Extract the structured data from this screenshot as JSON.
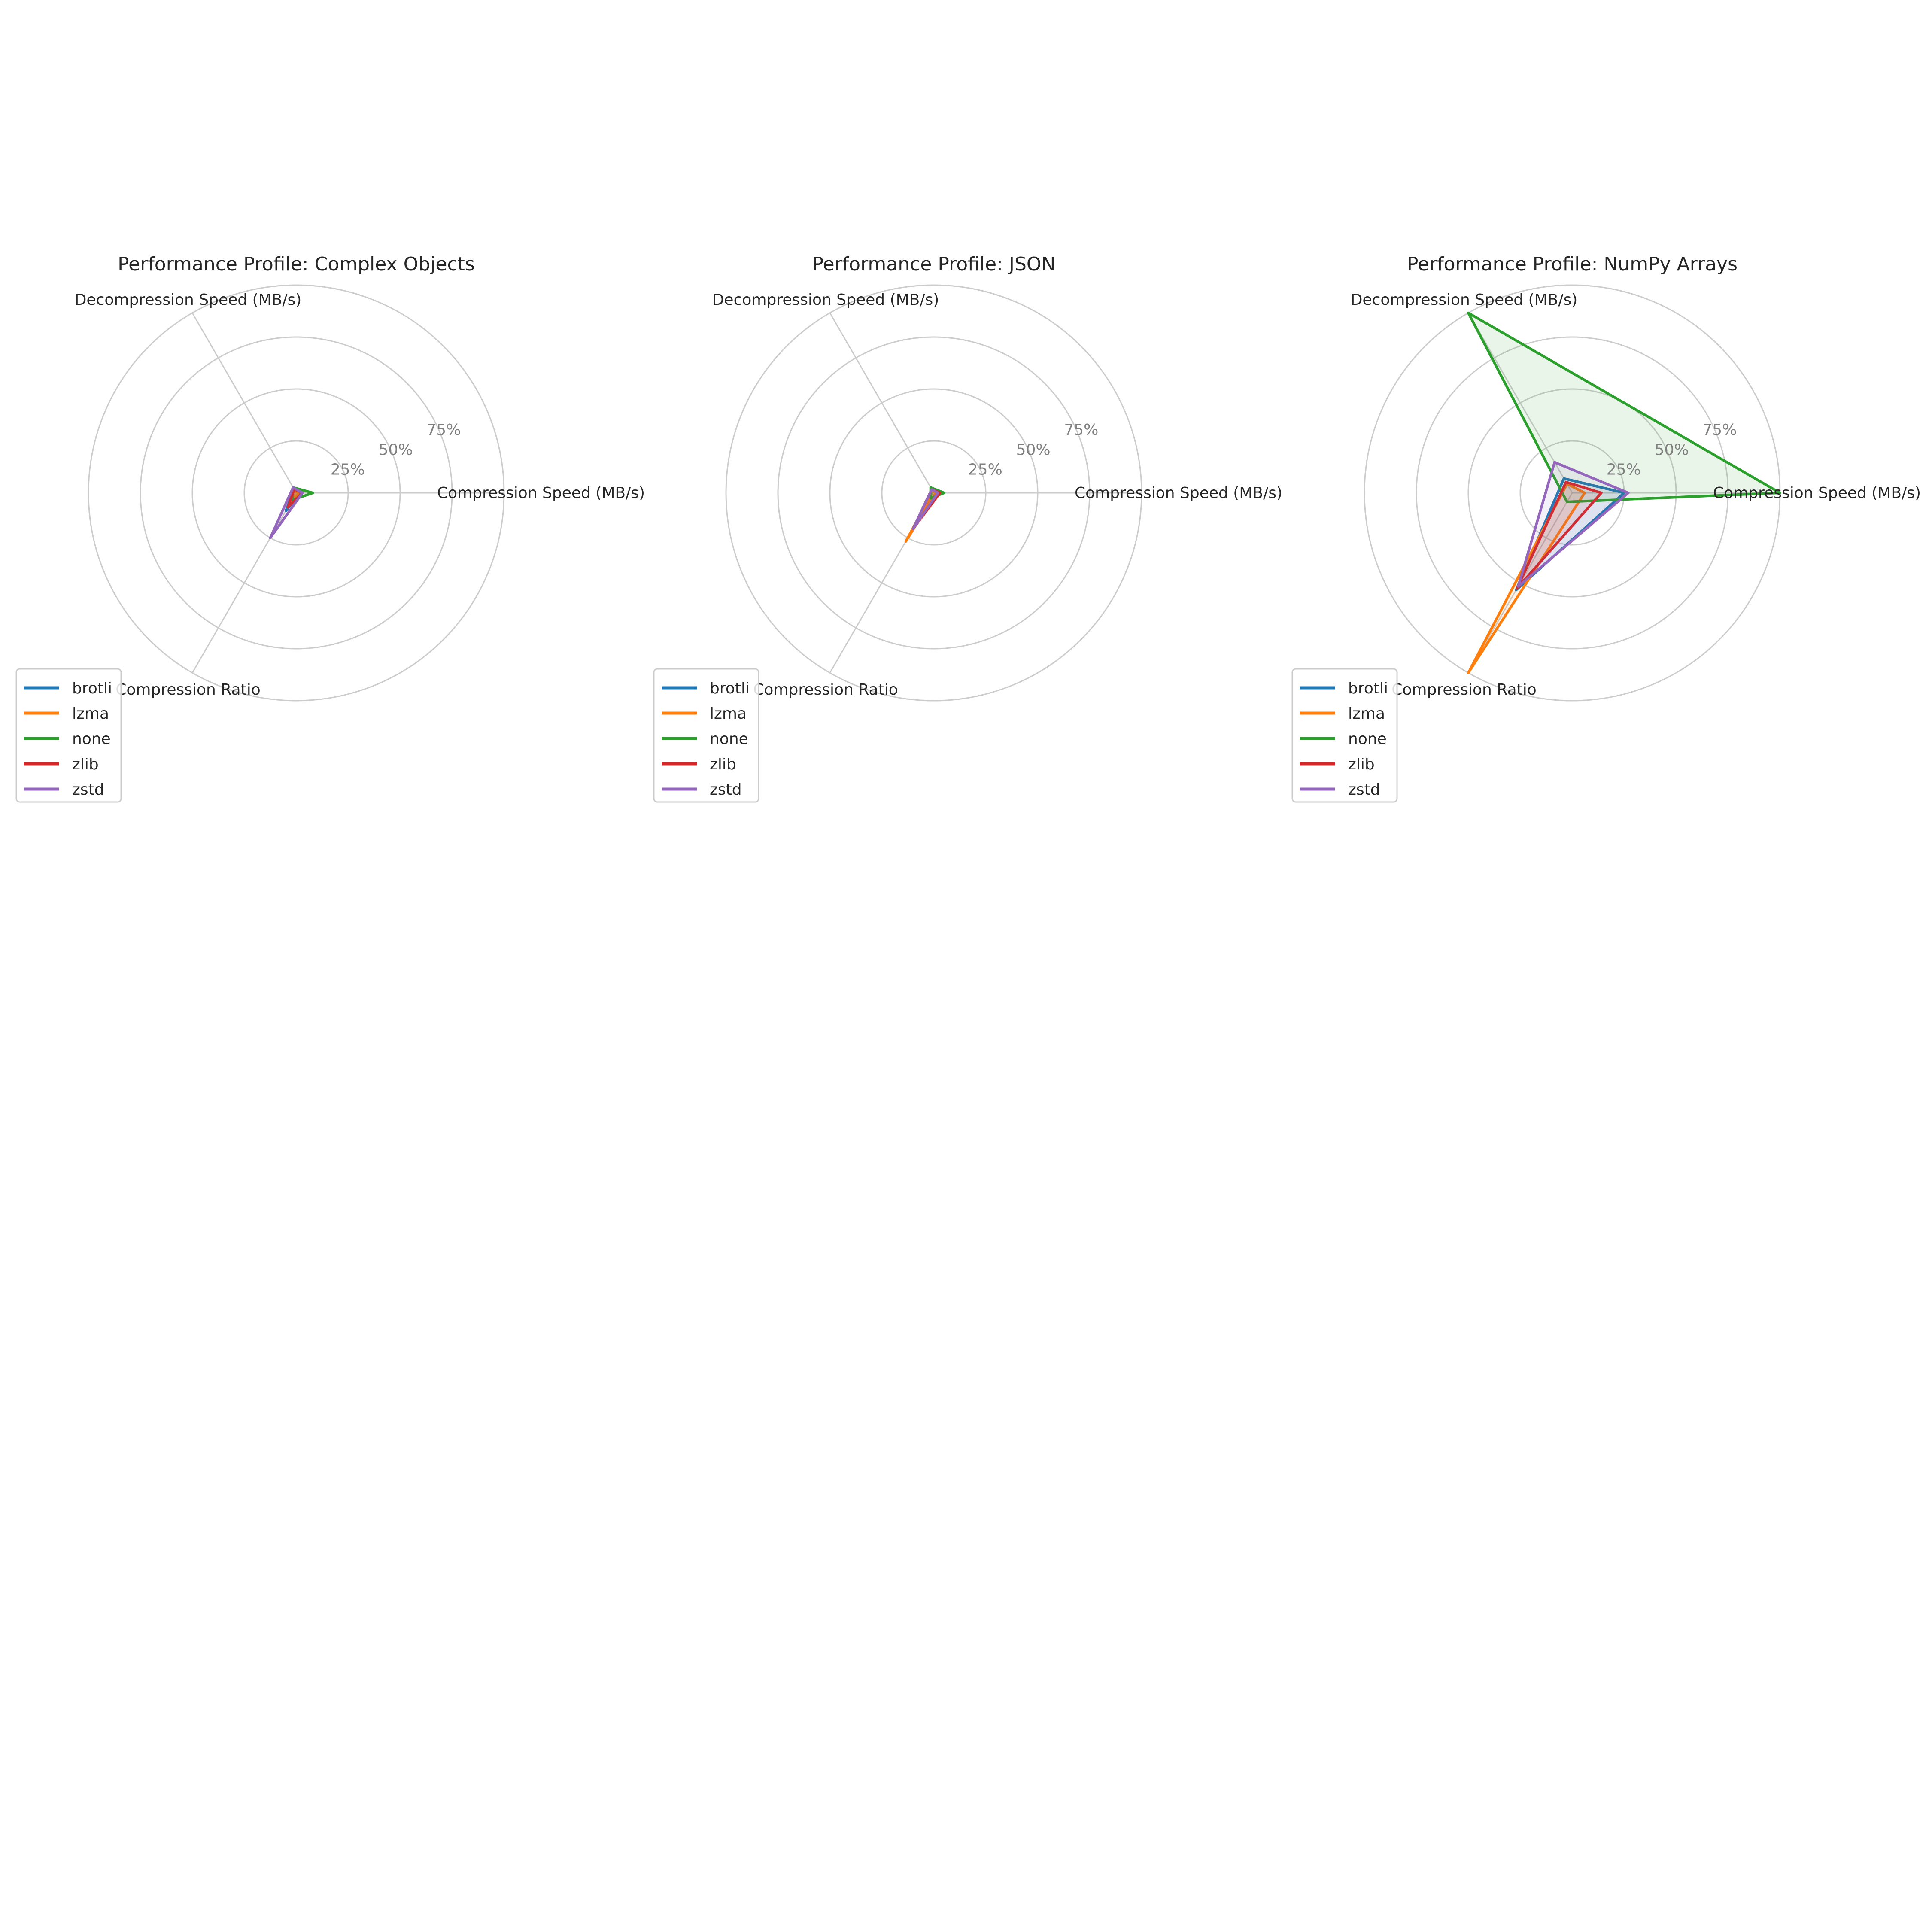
{
  "colors": {
    "brotli": "#1f77b4",
    "lzma": "#ff7f0e",
    "none": "#2ca02c",
    "zlib": "#d62728",
    "zstd": "#9467bd",
    "grid": "#cccccc",
    "tick_text": "#808080"
  },
  "chart_data": [
    {
      "type": "radar",
      "title": "Performance Profile: Complex Objects",
      "axes": [
        "Compression Speed (MB/s)",
        "Decompression Speed (MB/s)",
        "Compression Ratio"
      ],
      "r_ticks": [
        "25%",
        "50%",
        "75%"
      ],
      "r_tick_values": [
        25,
        50,
        75
      ],
      "r_max": 100,
      "grid": true,
      "legend_position": "lower-left",
      "series": [
        {
          "name": "brotli",
          "values": [
            2,
            2,
            10
          ]
        },
        {
          "name": "lzma",
          "values": [
            1,
            1,
            8
          ]
        },
        {
          "name": "none",
          "values": [
            8,
            3,
            4
          ]
        },
        {
          "name": "zlib",
          "values": [
            3,
            2,
            8
          ]
        },
        {
          "name": "zstd",
          "values": [
            3,
            3,
            25
          ]
        }
      ]
    },
    {
      "type": "radar",
      "title": "Performance Profile: JSON",
      "axes": [
        "Compression Speed (MB/s)",
        "Decompression Speed (MB/s)",
        "Compression Ratio"
      ],
      "r_ticks": [
        "25%",
        "50%",
        "75%"
      ],
      "r_tick_values": [
        25,
        50,
        75
      ],
      "r_max": 100,
      "grid": true,
      "legend_position": "lower-left",
      "series": [
        {
          "name": "brotli",
          "values": [
            1,
            1,
            22
          ]
        },
        {
          "name": "lzma",
          "values": [
            1,
            1,
            27
          ]
        },
        {
          "name": "none",
          "values": [
            5,
            3,
            3
          ]
        },
        {
          "name": "zlib",
          "values": [
            3,
            2,
            20
          ]
        },
        {
          "name": "zstd",
          "values": [
            2,
            2,
            20
          ]
        }
      ]
    },
    {
      "type": "radar",
      "title": "Performance Profile: NumPy Arrays",
      "axes": [
        "Compression Speed (MB/s)",
        "Decompression Speed (MB/s)",
        "Compression Ratio"
      ],
      "r_ticks": [
        "25%",
        "50%",
        "75%"
      ],
      "r_tick_values": [
        25,
        50,
        75
      ],
      "r_max": 100,
      "grid": true,
      "legend_position": "lower-left",
      "series": [
        {
          "name": "brotli",
          "values": [
            25,
            8,
            54
          ]
        },
        {
          "name": "lzma",
          "values": [
            6,
            5,
            100
          ]
        },
        {
          "name": "none",
          "values": [
            100,
            100,
            5
          ]
        },
        {
          "name": "zlib",
          "values": [
            14,
            6,
            53
          ]
        },
        {
          "name": "zstd",
          "values": [
            27,
            17,
            52
          ]
        }
      ]
    }
  ]
}
